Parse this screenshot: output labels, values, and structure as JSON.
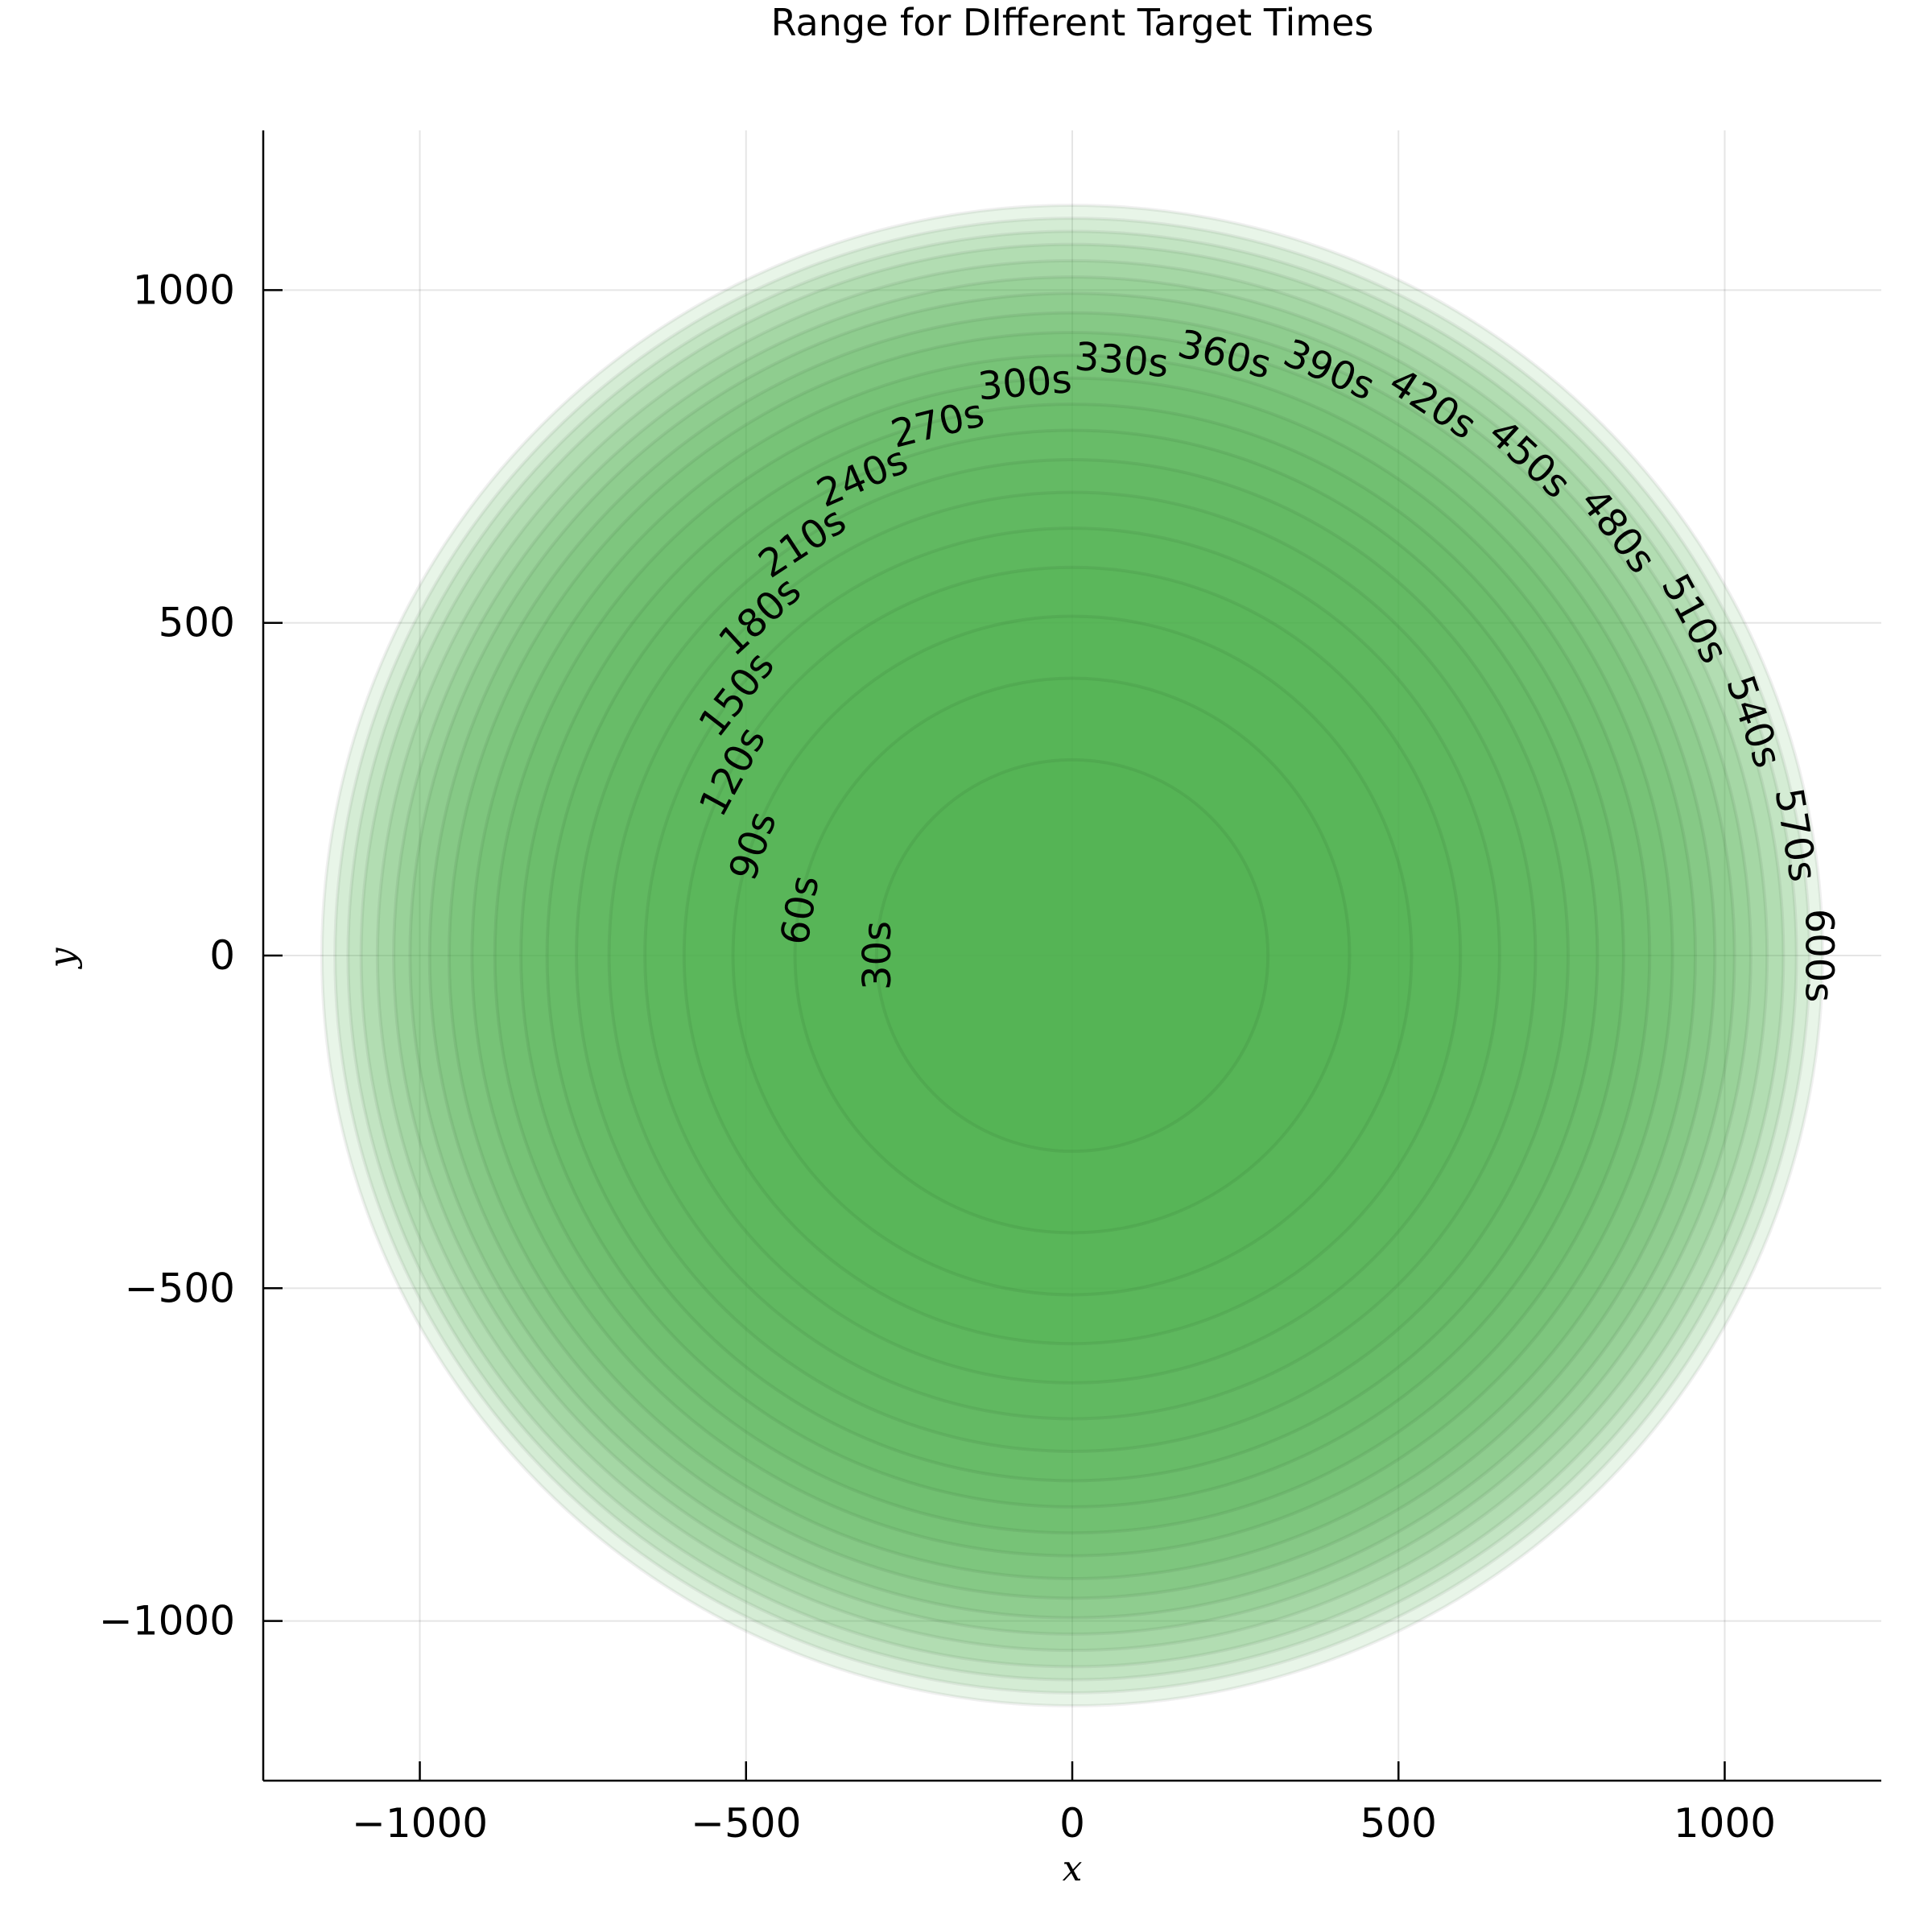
{
  "chart_data": {
    "type": "area",
    "title": "Range for DIfferent Target Times",
    "xlabel": "x",
    "ylabel": "y",
    "xlim": [
      -1240,
      1240
    ],
    "ylim": [
      -1240,
      1240
    ],
    "xticks": [
      -1000,
      -500,
      0,
      500,
      1000
    ],
    "xtick_labels": [
      "−1000",
      "−500",
      "0",
      "500",
      "1000"
    ],
    "yticks": [
      1000,
      500,
      0,
      -500,
      -1000
    ],
    "ytick_labels": [
      "1000",
      "500",
      "0",
      "−500",
      "−1000"
    ],
    "grid": true,
    "legend": "none",
    "fill_color": "#4caf50",
    "center": [
      0,
      0
    ],
    "series": [
      {
        "label": "30s",
        "radius": 300
      },
      {
        "label": "60s",
        "radius": 425
      },
      {
        "label": "90s",
        "radius": 520
      },
      {
        "label": "120s",
        "radius": 595
      },
      {
        "label": "150s",
        "radius": 655
      },
      {
        "label": "180s",
        "radius": 710
      },
      {
        "label": "210s",
        "radius": 760
      },
      {
        "label": "240s",
        "radius": 805
      },
      {
        "label": "270s",
        "radius": 845
      },
      {
        "label": "300s",
        "radius": 885
      },
      {
        "label": "330s",
        "radius": 920
      },
      {
        "label": "360s",
        "radius": 955
      },
      {
        "label": "390s",
        "radius": 985
      },
      {
        "label": "420s",
        "radius": 1015
      },
      {
        "label": "450s",
        "radius": 1040
      },
      {
        "label": "480s",
        "radius": 1065
      },
      {
        "label": "510s",
        "radius": 1090
      },
      {
        "label": "540s",
        "radius": 1110
      },
      {
        "label": "570s",
        "radius": 1130
      },
      {
        "label": "600s",
        "radius": 1150
      }
    ]
  }
}
